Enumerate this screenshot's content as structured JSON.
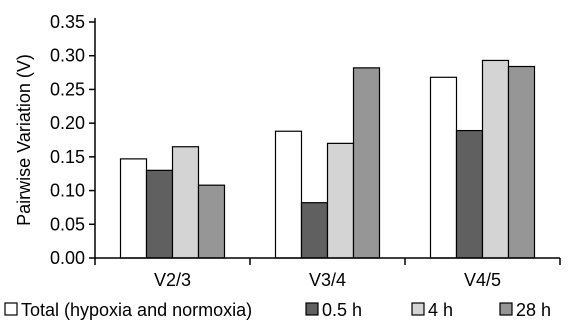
{
  "chart_data": {
    "type": "bar",
    "title": "",
    "xlabel": "",
    "ylabel": "Pairwise Variation (V)",
    "ylim": [
      0,
      0.35
    ],
    "yticks": [
      "0.00",
      "0.05",
      "0.10",
      "0.15",
      "0.20",
      "0.25",
      "0.30",
      "0.35"
    ],
    "categories": [
      "V2/3",
      "V3/4",
      "V4/5"
    ],
    "series": [
      {
        "name": "Total (hypoxia and normoxia)",
        "color": "#ffffff",
        "values": [
          0.147,
          0.188,
          0.268
        ]
      },
      {
        "name": "0.5 h",
        "color": "#606060",
        "values": [
          0.13,
          0.082,
          0.189
        ]
      },
      {
        "name": "4 h",
        "color": "#d4d4d4",
        "values": [
          0.165,
          0.17,
          0.293
        ]
      },
      {
        "name": "28 h",
        "color": "#969696",
        "values": [
          0.108,
          0.282,
          0.284
        ]
      }
    ],
    "grid": false,
    "legend_position": "bottom"
  }
}
